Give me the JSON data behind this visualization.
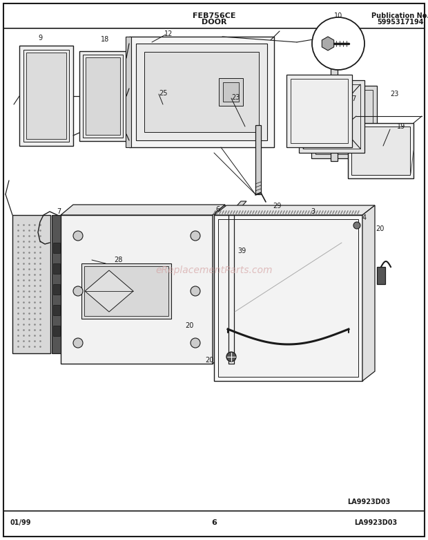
{
  "title_center_line1": "FEB756CE",
  "title_center_line2": "DOOR",
  "title_right_line1": "Publication No.",
  "title_right_line2": "5995317194",
  "bottom_left": "01/99",
  "bottom_center": "6",
  "bottom_right": "LA9923D03",
  "watermark": "eReplacementParts.com",
  "bg_color": "#ffffff",
  "fig_width": 6.2,
  "fig_height": 7.81,
  "dpi": 100
}
